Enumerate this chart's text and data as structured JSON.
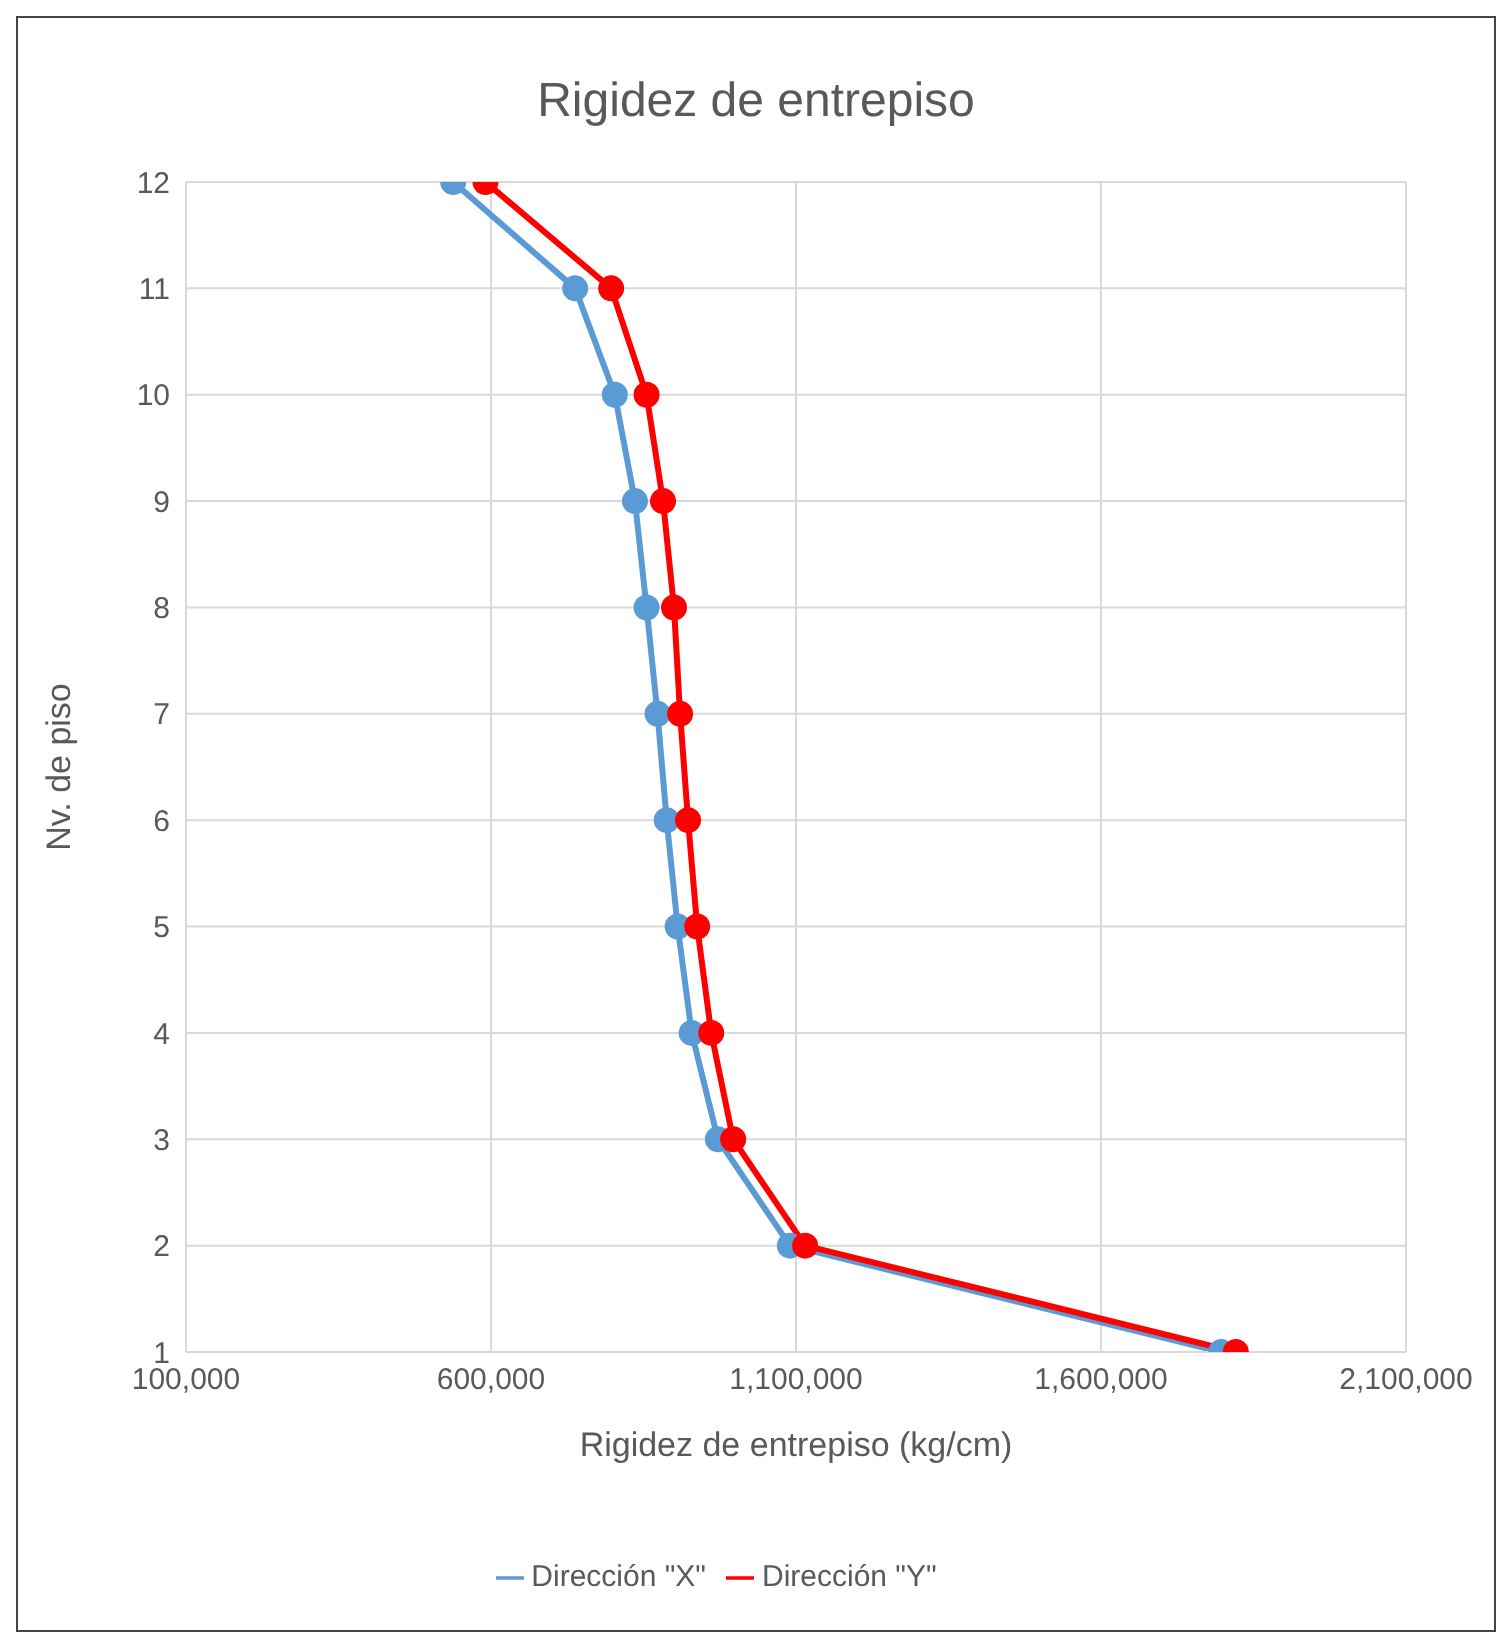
{
  "chart_data": {
    "type": "line",
    "title": "Rigidez de entrepiso",
    "xlabel": "Rigidez de entrepiso (kg/cm)",
    "ylabel": "Nv. de piso",
    "orientation": "horizontal",
    "categories": [
      "12",
      "11",
      "10",
      "9",
      "8",
      "7",
      "6",
      "5",
      "4",
      "3",
      "2",
      "1"
    ],
    "series": [
      {
        "name": "Dirección \"X\"",
        "color": "#5b9bd5",
        "values": [
          538000,
          738000,
          803000,
          836000,
          855000,
          873000,
          888000,
          906000,
          929000,
          972000,
          1090000,
          1797000
        ]
      },
      {
        "name": "Dirección \"Y\"",
        "color": "#ff0000",
        "values": [
          591000,
          797000,
          855000,
          882000,
          900000,
          910000,
          923000,
          938000,
          961000,
          997000,
          1115000,
          1821000
        ]
      }
    ],
    "xlim": [
      100000,
      2100000
    ],
    "xticks": [
      {
        "value": 100000,
        "label": "100,000"
      },
      {
        "value": 600000,
        "label": "600,000"
      },
      {
        "value": 1100000,
        "label": "1,100,000"
      },
      {
        "value": 1600000,
        "label": "1,600,000"
      },
      {
        "value": 2100000,
        "label": "2,100,000"
      }
    ],
    "grid": true,
    "legend": "bottom",
    "marker": "circle",
    "line_style": "solid"
  }
}
